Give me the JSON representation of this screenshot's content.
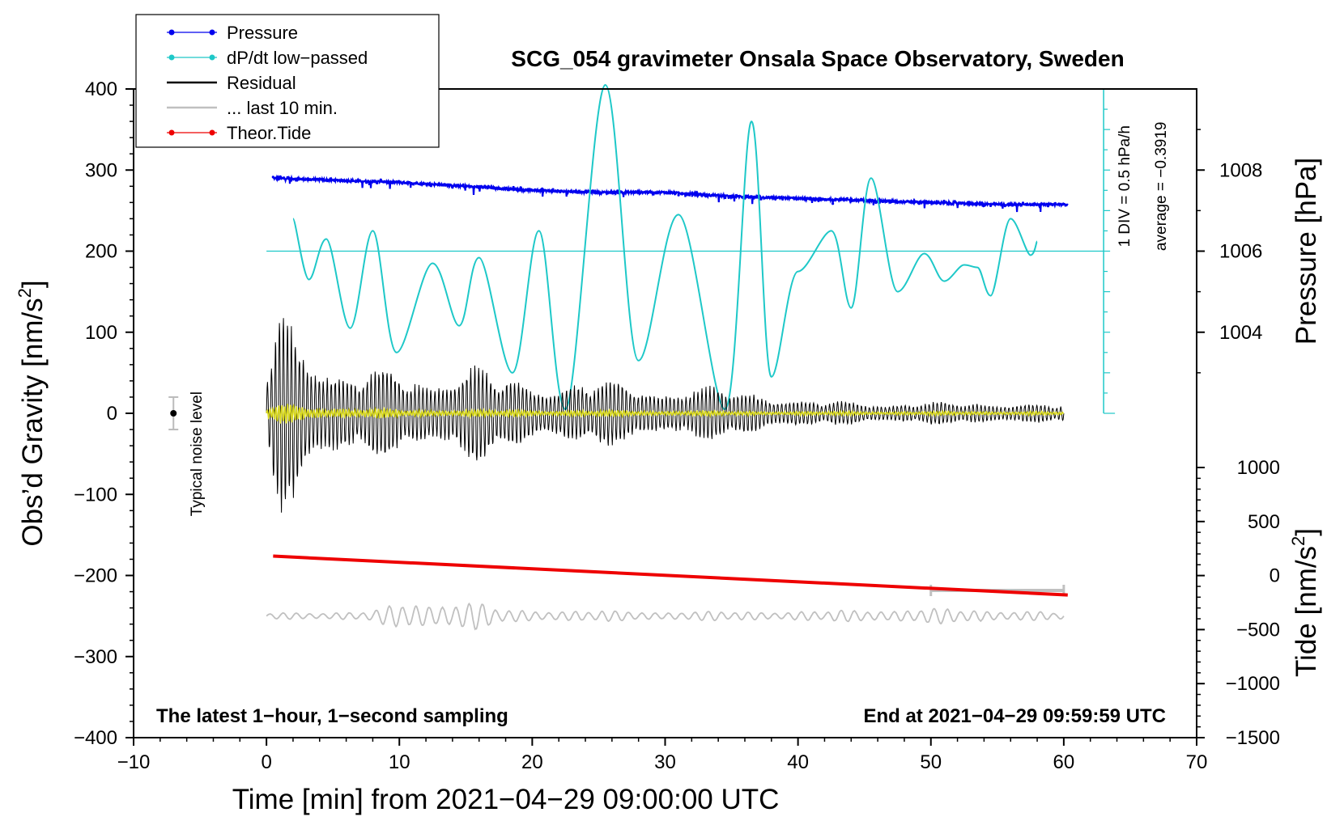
{
  "chart_data": {
    "type": "line",
    "title": "SCG_054 gravimeter Onsala Space Observatory, Sweden",
    "xlabel": "Time [min] from 2021−04−29 09:00:00 UTC",
    "xlim": [
      -10,
      70
    ],
    "xticks": [
      "−10",
      "0",
      "10",
      "20",
      "30",
      "40",
      "50",
      "60",
      "70"
    ],
    "ylabel_left": "Obs’d Gravity [nm/s",
    "ylabel_left_sup": "2",
    "ylabel_left_close": "]",
    "ylim_left": [
      -400,
      400
    ],
    "yticks_left": [
      "400",
      "300",
      "200",
      "100",
      "0",
      "−100",
      "−200",
      "−300",
      "−400"
    ],
    "ylabel_pressure": "Pressure [hPa]",
    "yticks_pressure": [
      "1008",
      "1006",
      "1004"
    ],
    "ylabel_tide": "Tide [nm/s",
    "ylabel_tide_sup": "2",
    "ylabel_tide_close": "]",
    "yticks_tide": [
      "1000",
      "500",
      "0",
      "−500",
      "−1000",
      "−1500"
    ],
    "noise_label": "Typical noise level",
    "noise_level": 20,
    "dpdt_scale_label": "1 DIV = 0.5 hPa/h",
    "dpdt_average_label": "average = −0.3919",
    "dpdt_average": -0.3919,
    "footer_left": "The latest 1−hour, 1−second sampling",
    "footer_right": "End at 2021−04−29 09:59:59 UTC",
    "legend": [
      {
        "label": "Pressure",
        "color": "#0000ee",
        "marker": true
      },
      {
        "label": "dP/dt low−passed",
        "color": "#1ec8c8",
        "marker": true
      },
      {
        "label": "Residual",
        "color": "#000000",
        "marker": false
      },
      {
        "label": "... last 10 min.",
        "color": "#c0c0c0",
        "marker": false
      },
      {
        "label": "Theor.Tide",
        "color": "#ee0000",
        "marker": true
      }
    ],
    "series": [
      {
        "name": "Pressure",
        "unit": "hPa",
        "color": "#0000ee",
        "x": [
          0.5,
          5,
          10,
          15,
          20,
          25,
          30,
          35,
          40,
          45,
          50,
          55,
          60.3
        ],
        "values": [
          1007.8,
          1007.75,
          1007.7,
          1007.6,
          1007.5,
          1007.45,
          1007.45,
          1007.35,
          1007.3,
          1007.25,
          1007.2,
          1007.15,
          1007.15
        ]
      },
      {
        "name": "dP/dt low-passed",
        "unit": "nm/s2 display",
        "color": "#1ec8c8",
        "x": [
          2,
          3.2,
          4.5,
          6.3,
          8,
          9.8,
          12.5,
          14.5,
          16,
          18.5,
          20.5,
          22.5,
          25.5,
          28,
          31,
          34.5,
          36.5,
          38,
          40,
          42.5,
          44,
          45.5,
          47.5,
          49.5,
          51,
          52.5,
          53.5,
          54.5,
          56,
          57.5,
          58
        ],
        "values": [
          240,
          165,
          215,
          105,
          225,
          75,
          185,
          108,
          192,
          50,
          225,
          5,
          405,
          65,
          245,
          5,
          360,
          45,
          175,
          225,
          130,
          290,
          150,
          197,
          163,
          183,
          180,
          145,
          240,
          195,
          212
        ]
      },
      {
        "name": "Residual",
        "unit": "nm/s2",
        "color": "#000000",
        "envelope_x": [
          0,
          1,
          3,
          6,
          9,
          12,
          16,
          20,
          25,
          30,
          35,
          40,
          45,
          50,
          55,
          60
        ],
        "envelope_values": [
          60,
          150,
          95,
          55,
          60,
          50,
          65,
          40,
          45,
          35,
          35,
          18,
          15,
          15,
          15,
          12
        ]
      },
      {
        "name": "Residual (yellow)",
        "unit": "nm/s2",
        "color": "#d8d820",
        "envelope_x": [
          0,
          1,
          5,
          10,
          20,
          30,
          40,
          50,
          60
        ],
        "envelope_values": [
          10,
          15,
          8,
          6,
          5,
          4,
          3,
          3,
          3
        ]
      },
      {
        "name": "... last 10 min.",
        "unit": "nm/s2",
        "color": "#c0c0c0",
        "baseline": -250,
        "envelope_x": [
          0,
          8,
          10,
          16,
          18,
          30,
          40,
          50,
          60
        ],
        "envelope_values": [
          4,
          6,
          18,
          18,
          8,
          6,
          6,
          10,
          5
        ]
      },
      {
        "name": "Theor.Tide",
        "unit": "nm/s2",
        "color": "#ee0000",
        "x": [
          0.5,
          60.3
        ],
        "values": [
          180,
          -180
        ]
      }
    ],
    "last10_bar": [
      50,
      60
    ]
  }
}
